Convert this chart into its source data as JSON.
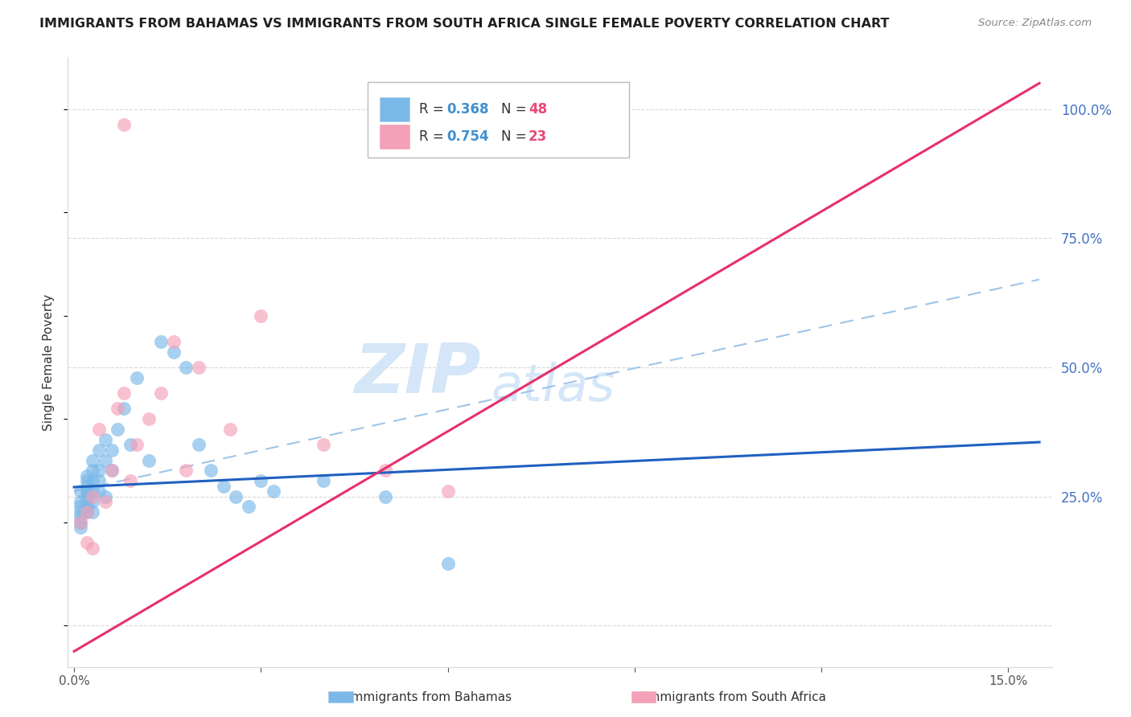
{
  "title": "IMMIGRANTS FROM BAHAMAS VS IMMIGRANTS FROM SOUTH AFRICA SINGLE FEMALE POVERTY CORRELATION CHART",
  "source": "Source: ZipAtlas.com",
  "ylabel": "Single Female Poverty",
  "xlim": [
    -0.001,
    0.157
  ],
  "ylim": [
    -0.08,
    1.1
  ],
  "x_ticks": [
    0.0,
    0.03,
    0.06,
    0.09,
    0.12,
    0.15
  ],
  "y_ticks": [
    0.0,
    0.25,
    0.5,
    0.75,
    1.0
  ],
  "bahamas_R": 0.368,
  "bahamas_N": 48,
  "southafrica_R": 0.754,
  "southafrica_N": 23,
  "bahamas_color": "#7ab8e8",
  "southafrica_color": "#f4a0b8",
  "bahamas_line_color": "#2060c0",
  "southafrica_line_color": "#e8306a",
  "dashed_line_color": "#a0c4e8",
  "watermark_zip": "ZIP",
  "watermark_atlas": "atlas",
  "watermark_color": "#d0e4f8",
  "legend_label_1": "Immigrants from Bahamas",
  "legend_label_2": "Immigrants from South Africa",
  "r_color": "#4090d0",
  "n_color": "#e84878",
  "axis_label_color": "#4472c4",
  "grid_color": "#d8d8d8",
  "title_color": "#202020",
  "bahamas_x": [
    0.001,
    0.001,
    0.001,
    0.001,
    0.001,
    0.001,
    0.001,
    0.002,
    0.002,
    0.002,
    0.002,
    0.002,
    0.002,
    0.002,
    0.002,
    0.003,
    0.003,
    0.003,
    0.003,
    0.003,
    0.003,
    0.004,
    0.004,
    0.004,
    0.004,
    0.005,
    0.005,
    0.005,
    0.006,
    0.006,
    0.007,
    0.008,
    0.009,
    0.01,
    0.012,
    0.014,
    0.016,
    0.018,
    0.02,
    0.022,
    0.024,
    0.026,
    0.028,
    0.03,
    0.032,
    0.04,
    0.05,
    0.06
  ],
  "bahamas_y": [
    0.2,
    0.22,
    0.24,
    0.26,
    0.21,
    0.19,
    0.23,
    0.22,
    0.24,
    0.26,
    0.28,
    0.25,
    0.23,
    0.27,
    0.29,
    0.24,
    0.26,
    0.22,
    0.28,
    0.3,
    0.32,
    0.26,
    0.3,
    0.34,
    0.28,
    0.32,
    0.36,
    0.25,
    0.34,
    0.3,
    0.38,
    0.42,
    0.35,
    0.48,
    0.32,
    0.55,
    0.53,
    0.5,
    0.35,
    0.3,
    0.27,
    0.25,
    0.23,
    0.28,
    0.26,
    0.28,
    0.25,
    0.12
  ],
  "southafrica_x": [
    0.001,
    0.002,
    0.002,
    0.003,
    0.003,
    0.004,
    0.005,
    0.006,
    0.007,
    0.008,
    0.009,
    0.01,
    0.012,
    0.014,
    0.016,
    0.018,
    0.02,
    0.025,
    0.03,
    0.04,
    0.05,
    0.06,
    0.008
  ],
  "southafrica_y": [
    0.2,
    0.22,
    0.16,
    0.25,
    0.15,
    0.38,
    0.24,
    0.3,
    0.42,
    0.45,
    0.28,
    0.35,
    0.4,
    0.45,
    0.55,
    0.3,
    0.5,
    0.38,
    0.6,
    0.35,
    0.3,
    0.26,
    0.97
  ],
  "bah_line_x0": 0.0,
  "bah_line_y0": 0.268,
  "bah_line_x1": 0.155,
  "bah_line_y1": 0.355,
  "sa_line_x0": 0.0,
  "sa_line_y0": -0.05,
  "sa_line_x1": 0.155,
  "sa_line_y1": 1.05,
  "dash_line_x0": 0.0,
  "dash_line_y0": 0.26,
  "dash_line_x1": 0.155,
  "dash_line_y1": 0.67
}
